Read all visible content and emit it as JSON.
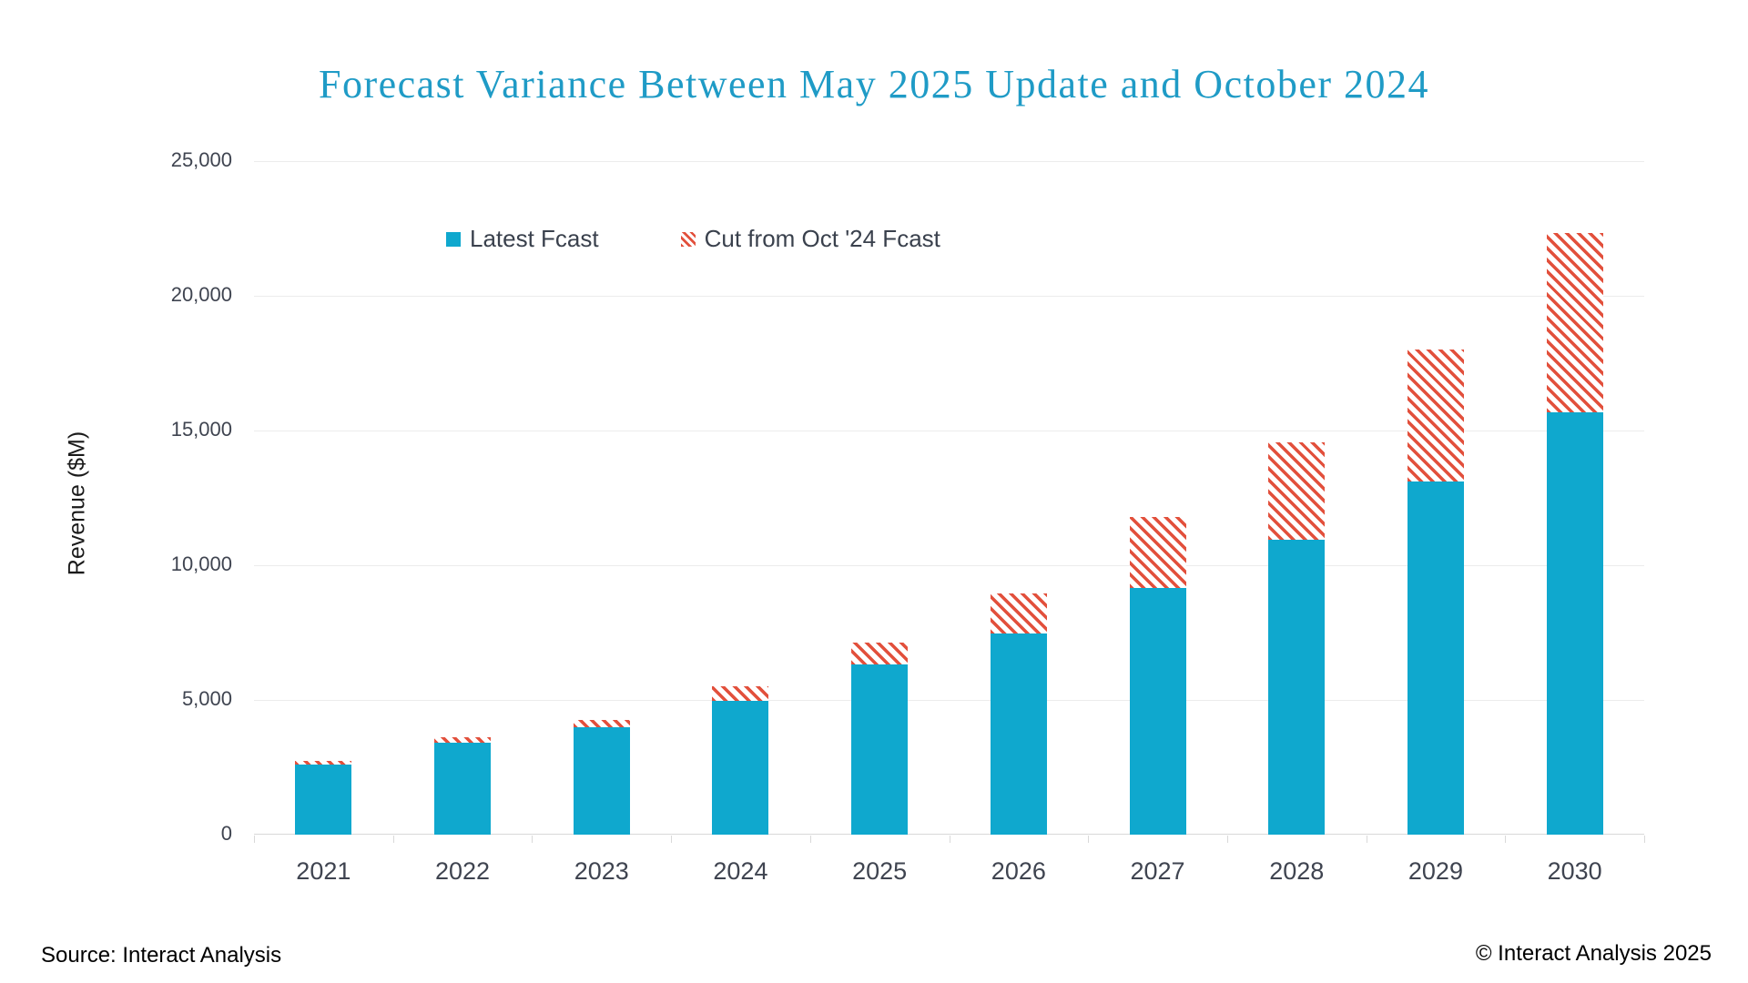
{
  "title": "Forecast Variance Between May 2025 Update and October 2024",
  "footer": {
    "source": "Source: Interact Analysis",
    "copyright": "© Interact Analysis 2025"
  },
  "colors": {
    "teal": "#0FA8CE",
    "red": "#E2503C",
    "title_color": "#1F9BC6",
    "axis_text": "#3F4450",
    "gridline": "#ECECEC",
    "axis_line": "#D9D9D9"
  },
  "chart_data": {
    "type": "bar",
    "stacked": true,
    "title": "Forecast Variance Between May 2025 Update and October 2024",
    "xlabel": "",
    "ylabel": "Revenue ($M)",
    "ylim": [
      0,
      25000
    ],
    "ytick_interval": 5000,
    "ytick_labels": [
      "0",
      "5,000",
      "10,000",
      "15,000",
      "20,000",
      "25,000"
    ],
    "grid": "horizontal",
    "legend_position": "top-left-inside",
    "categories": [
      "2021",
      "2022",
      "2023",
      "2024",
      "2025",
      "2026",
      "2027",
      "2028",
      "2029",
      "2030"
    ],
    "series": [
      {
        "name": "Latest Fcast",
        "style": "solid",
        "color": "#0FA8CE",
        "values": [
          2600,
          3410,
          3990,
          4970,
          6320,
          7470,
          9160,
          10950,
          13110,
          15680
        ]
      },
      {
        "name": "Cut from Oct '24 Fcast",
        "style": "hatched",
        "color": "#E2503C",
        "values": [
          140,
          200,
          270,
          540,
          810,
          1490,
          2640,
          3610,
          4900,
          6660
        ]
      }
    ]
  }
}
